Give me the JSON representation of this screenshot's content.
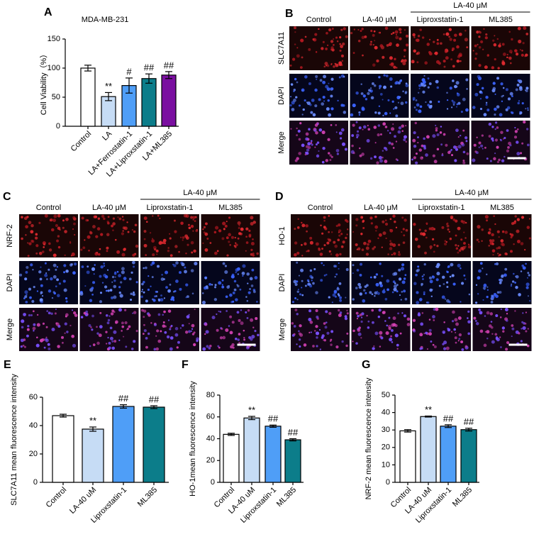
{
  "chart_data": [
    {
      "type": "bar",
      "panel_label": "A",
      "title": "MDA-MB-231",
      "ylabel": "Cell Viability（%）",
      "categories": [
        "Control",
        "LA",
        "LA+Ferrostatin-1",
        "LA+Liproxstatin-1",
        "LA+ML385"
      ],
      "values": [
        100,
        51,
        70,
        82,
        88
      ],
      "errors": [
        5,
        7,
        13,
        8,
        6
      ],
      "annotations": [
        null,
        "**",
        "#",
        "##",
        "##"
      ],
      "colors": [
        "#ffffff",
        "#c6dcf5",
        "#4f9ef7",
        "#0c7d8a",
        "#7a0fa0"
      ],
      "ylim": [
        0,
        150
      ],
      "yticks": [
        0,
        50,
        100,
        150
      ]
    },
    {
      "type": "bar",
      "panel_label": "E",
      "ylabel": "SLC7A11 mean fluorescence intensity",
      "categories": [
        "Control",
        "LA-40 uM",
        "Liproxstatin-1",
        "ML385"
      ],
      "values": [
        47,
        37.5,
        53.5,
        53
      ],
      "errors": [
        1,
        1.5,
        1.2,
        1
      ],
      "annotations": [
        null,
        "**",
        "##",
        "##"
      ],
      "colors": [
        "#ffffff",
        "#c6dcf5",
        "#4f9ef7",
        "#0c7d8a"
      ],
      "ylim": [
        0,
        60
      ],
      "yticks": [
        0,
        20,
        40,
        60
      ]
    },
    {
      "type": "bar",
      "panel_label": "F",
      "ylabel": "HO-1mean fluorescence intensity",
      "categories": [
        "Control",
        "LA-40 uM",
        "Liproxstatin-1",
        "ML385"
      ],
      "values": [
        44,
        59,
        51.5,
        39
      ],
      "errors": [
        1,
        1.5,
        1,
        1
      ],
      "annotations": [
        null,
        "**",
        "##",
        "##"
      ],
      "colors": [
        "#ffffff",
        "#c6dcf5",
        "#4f9ef7",
        "#0c7d8a"
      ],
      "ylim": [
        0,
        80
      ],
      "yticks": [
        0,
        20,
        40,
        60,
        80
      ]
    },
    {
      "type": "bar",
      "panel_label": "G",
      "ylabel": "NRF-2 mean fluorescence intensity",
      "categories": [
        "Control",
        "LA-40 uM",
        "Liproxstatin-1",
        "ML385"
      ],
      "values": [
        29.5,
        37.7,
        32.2,
        30.2
      ],
      "errors": [
        0.7,
        0.3,
        0.8,
        0.8
      ],
      "annotations": [
        null,
        "**",
        "##",
        "##"
      ],
      "colors": [
        "#ffffff",
        "#c6dcf5",
        "#4f9ef7",
        "#0c7d8a"
      ],
      "ylim": [
        0,
        50
      ],
      "yticks": [
        0,
        10,
        20,
        30,
        40,
        50
      ]
    }
  ],
  "image_panels": [
    {
      "label": "B",
      "group_header": "LA-40 μM",
      "column_headers": [
        "Control",
        "LA-40 μM",
        "Liproxstatin-1",
        "ML385"
      ],
      "row_labels": [
        "SLC7A11",
        "DAPI",
        "Merge"
      ]
    },
    {
      "label": "C",
      "group_header": "LA-40 μM",
      "column_headers": [
        "Control",
        "LA-40 μM",
        "Liproxstatin-1",
        "ML385"
      ],
      "row_labels": [
        "NRF-2",
        "DAPI",
        "Merge"
      ]
    },
    {
      "label": "D",
      "group_header": "LA-40 μM",
      "column_headers": [
        "Control",
        "LA-40 μM",
        "Liproxstatin-1",
        "ML385"
      ],
      "row_labels": [
        "HO-1",
        "DAPI",
        "Merge"
      ]
    }
  ]
}
